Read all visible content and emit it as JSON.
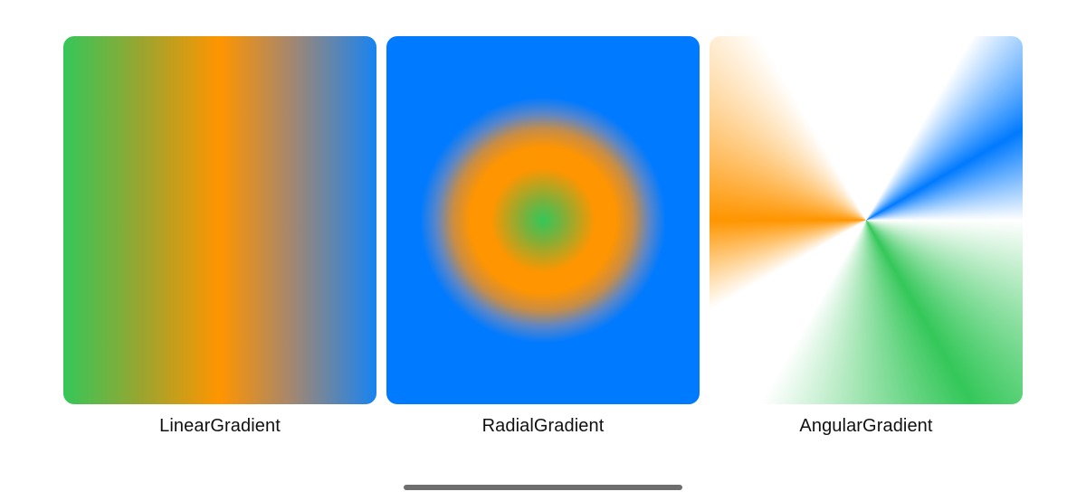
{
  "gradients": [
    {
      "id": "linear",
      "label": "LinearGradient",
      "colors": [
        "#34c759",
        "#ff9500",
        "#007aff"
      ]
    },
    {
      "id": "radial",
      "label": "RadialGradient",
      "colors": [
        "#34c759",
        "#ff9500",
        "#007aff"
      ]
    },
    {
      "id": "angular",
      "label": "AngularGradient",
      "colors": [
        "#ffffff",
        "#34c759",
        "#ff9500",
        "#007aff"
      ]
    }
  ],
  "system": {
    "home_indicator": "home-indicator-bar"
  }
}
